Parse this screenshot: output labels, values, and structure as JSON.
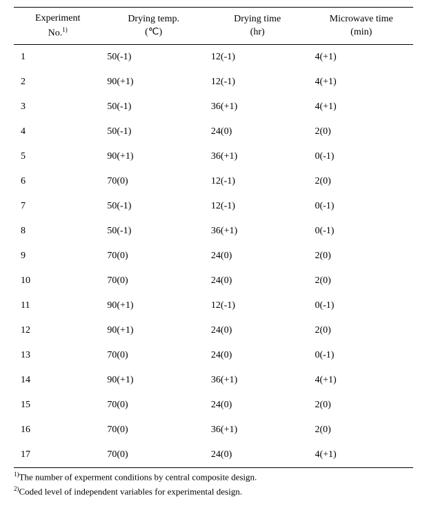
{
  "table": {
    "type": "table",
    "columns": [
      {
        "label_line1": "Experiment",
        "label_line2": "No.",
        "sup": "1)"
      },
      {
        "label_line1": "Drying temp.",
        "label_line2": "(℃)",
        "sup": ""
      },
      {
        "label_line1": "Drying time",
        "label_line2": "(hr)",
        "sup": ""
      },
      {
        "label_line1": "Microwave time",
        "label_line2": "(min)",
        "sup": ""
      }
    ],
    "rows": [
      [
        "1",
        "50(-1)",
        "12(-1)",
        "4(+1)"
      ],
      [
        "2",
        "90(+1)",
        "12(-1)",
        "4(+1)"
      ],
      [
        "3",
        "50(-1)",
        "36(+1)",
        "4(+1)"
      ],
      [
        "4",
        "50(-1)",
        "24(0)",
        "2(0)"
      ],
      [
        "5",
        "90(+1)",
        "36(+1)",
        "0(-1)"
      ],
      [
        "6",
        "70(0)",
        "12(-1)",
        "2(0)"
      ],
      [
        "7",
        "50(-1)",
        "12(-1)",
        "0(-1)"
      ],
      [
        "8",
        "50(-1)",
        "36(+1)",
        "0(-1)"
      ],
      [
        "9",
        "70(0)",
        "24(0)",
        "2(0)"
      ],
      [
        "10",
        "70(0)",
        "24(0)",
        "2(0)"
      ],
      [
        "11",
        "90(+1)",
        "12(-1)",
        "0(-1)"
      ],
      [
        "12",
        "90(+1)",
        "24(0)",
        "2(0)"
      ],
      [
        "13",
        "70(0)",
        "24(0)",
        "0(-1)"
      ],
      [
        "14",
        "90(+1)",
        "36(+1)",
        "4(+1)"
      ],
      [
        "15",
        "70(0)",
        "24(0)",
        "2(0)"
      ],
      [
        "16",
        "70(0)",
        "36(+1)",
        "2(0)"
      ],
      [
        "17",
        "70(0)",
        "24(0)",
        "4(+1)"
      ]
    ],
    "styling": {
      "background_color": "#ffffff",
      "text_color": "#000000",
      "border_color": "#000000",
      "header_fontsize": 14,
      "body_fontsize": 14,
      "font_family": "Times New Roman"
    }
  },
  "footnotes": [
    {
      "sup": "1)",
      "text": "The number of experment conditions by central composite design."
    },
    {
      "sup": "2)",
      "text": "Coded level of independent variables for experimental design."
    }
  ]
}
